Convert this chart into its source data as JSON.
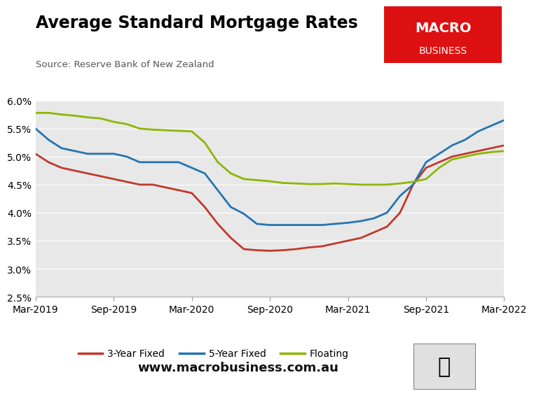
{
  "title": "Average Standard Mortgage Rates",
  "source": "Source: Reserve Bank of New Zealand",
  "website": "www.macrobusiness.com.au",
  "xtick_labels": [
    "Mar-2019",
    "Sep-2019",
    "Mar-2020",
    "Sep-2020",
    "Mar-2021",
    "Sep-2021",
    "Mar-2022"
  ],
  "xtick_pos": [
    0,
    6,
    12,
    18,
    24,
    30,
    36
  ],
  "xlim": [
    0,
    36
  ],
  "ylim": [
    0.025,
    0.06
  ],
  "ytick_values": [
    0.025,
    0.03,
    0.035,
    0.04,
    0.045,
    0.05,
    0.055,
    0.06
  ],
  "bg_color": "#e8e8e8",
  "three_year_color": "#c0392b",
  "five_year_color": "#2475b0",
  "floating_color": "#8db600",
  "logo_bg": "#dd1111",
  "logo_text1": "MACRO",
  "logo_text2": "BUSINESS",
  "three_year_pct": [
    5.05,
    4.9,
    4.8,
    4.75,
    4.7,
    4.65,
    4.6,
    4.55,
    4.5,
    4.5,
    4.45,
    4.4,
    4.35,
    4.1,
    3.8,
    3.55,
    3.35,
    3.33,
    3.32,
    3.33,
    3.35,
    3.38,
    3.4,
    3.45,
    3.5,
    3.55,
    3.65,
    3.75,
    4.0,
    4.5,
    4.8,
    4.9,
    5.0,
    5.05,
    5.1,
    5.15,
    5.2
  ],
  "five_year_pct": [
    5.5,
    5.3,
    5.15,
    5.1,
    5.05,
    5.05,
    5.05,
    5.0,
    4.9,
    4.9,
    4.9,
    4.9,
    4.8,
    4.7,
    4.4,
    4.1,
    3.98,
    3.8,
    3.78,
    3.78,
    3.78,
    3.78,
    3.78,
    3.8,
    3.82,
    3.85,
    3.9,
    4.0,
    4.3,
    4.5,
    4.9,
    5.05,
    5.2,
    5.3,
    5.45,
    5.55,
    5.65
  ],
  "floating_pct": [
    5.78,
    5.78,
    5.75,
    5.73,
    5.7,
    5.68,
    5.62,
    5.58,
    5.5,
    5.48,
    5.47,
    5.46,
    5.45,
    5.25,
    4.9,
    4.7,
    4.6,
    4.58,
    4.56,
    4.53,
    4.52,
    4.51,
    4.51,
    4.52,
    4.51,
    4.5,
    4.5,
    4.5,
    4.52,
    4.55,
    4.6,
    4.8,
    4.95,
    5.0,
    5.05,
    5.08,
    5.1
  ]
}
